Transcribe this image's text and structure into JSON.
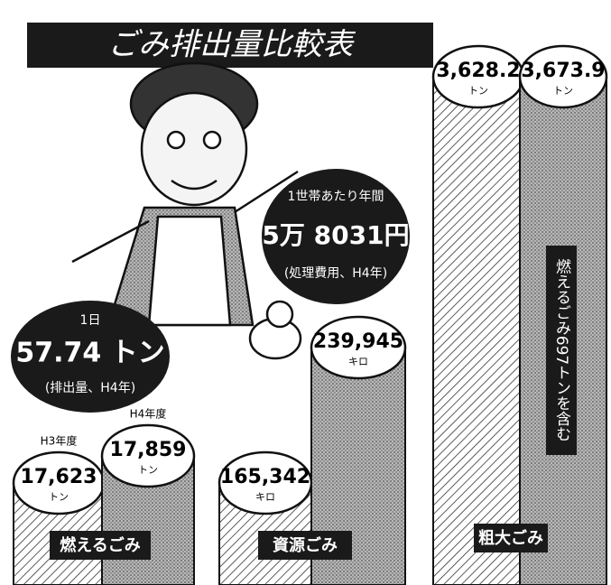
{
  "title": "ごみ排出量比較表",
  "callouts": [
    {
      "lines": [
        "1日",
        "57.74 トン",
        "(排出量、H4年)"
      ]
    },
    {
      "lines": [
        "1世帯あたり年間",
        "5万 8031円",
        "(処理費用、H4年)"
      ]
    }
  ],
  "groups": [
    {
      "label": "燃えるごみ",
      "bars": [
        {
          "year": "H3年度",
          "value": "17,623",
          "unit": "トン"
        },
        {
          "year": "H4年度",
          "value": "17,859",
          "unit": "トン"
        }
      ]
    },
    {
      "label": "資源ごみ",
      "bars": [
        {
          "value": "165,342",
          "unit": "キロ"
        },
        {
          "value": "239,945",
          "unit": "キロ"
        }
      ]
    },
    {
      "label": "粗大ごみ",
      "bars": [
        {
          "value": "3,628.2",
          "unit": "トン"
        },
        {
          "value": "3,673.9",
          "unit": "トン"
        }
      ],
      "note": "燃えるごみ697トンを含む"
    }
  ]
}
